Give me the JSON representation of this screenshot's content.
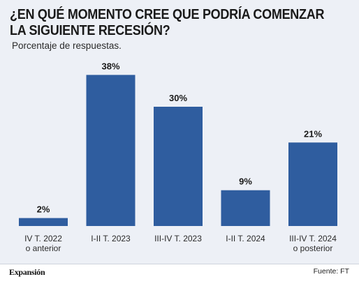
{
  "title_lines": [
    "¿EN QUÉ MOMENTO CREE QUE PODRÍA COMENZAR",
    "LA SIGUIENTE RECESIÓN?"
  ],
  "subtitle": "Porcentaje de respuestas.",
  "brand": "Expansión",
  "source": "Fuente: FT",
  "colors": {
    "bar": "#2f5d9f",
    "panel": "#edf0f6",
    "text": "#1a1a1a"
  },
  "chart_data": {
    "type": "bar",
    "title": "¿EN QUÉ MOMENTO CREE QUE PODRÍA COMENZAR LA SIGUIENTE RECESIÓN?",
    "subtitle": "Porcentaje de respuestas.",
    "categories": [
      [
        "IV T. 2022",
        "o anterior"
      ],
      [
        "I-II T. 2023"
      ],
      [
        "III-IV T. 2023"
      ],
      [
        "I-II T. 2024"
      ],
      [
        "III-IV T. 2024",
        "o posterior"
      ]
    ],
    "values": [
      2,
      38,
      30,
      9,
      21
    ],
    "value_labels": [
      "2%",
      "38%",
      "30%",
      "9%",
      "21%"
    ],
    "unit": "%",
    "ylim": [
      0,
      40
    ],
    "grid": false,
    "legend": "none"
  }
}
